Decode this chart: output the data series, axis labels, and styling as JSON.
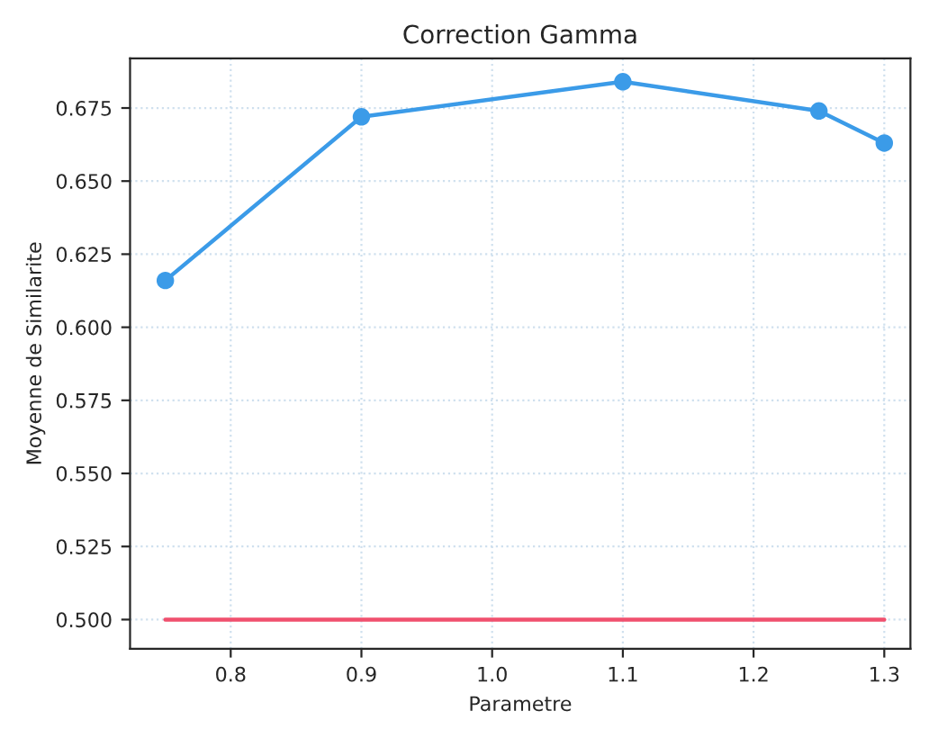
{
  "chart_data": {
    "type": "line",
    "title": "Correction Gamma",
    "xlabel": "Parametre",
    "ylabel": "Moyenne de Similarite",
    "x": [
      0.75,
      0.9,
      1.1,
      1.25,
      1.3
    ],
    "series": [
      {
        "color": "#3b9be8",
        "values": [
          0.616,
          0.672,
          0.684,
          0.674,
          0.663
        ],
        "marker": "circle"
      },
      {
        "color": "#f0506e",
        "values": [
          0.5,
          0.5,
          0.5,
          0.5,
          0.5
        ],
        "marker": "none"
      }
    ],
    "xlim": [
      0.723,
      1.32
    ],
    "ylim": [
      0.49,
      0.692
    ],
    "xticks": [
      {
        "value": 0.8,
        "label": "0.8"
      },
      {
        "value": 0.9,
        "label": "0.9"
      },
      {
        "value": 1.0,
        "label": "1.0"
      },
      {
        "value": 1.1,
        "label": "1.1"
      },
      {
        "value": 1.2,
        "label": "1.2"
      },
      {
        "value": 1.3,
        "label": "1.3"
      }
    ],
    "yticks": [
      {
        "value": 0.5,
        "label": "0.500"
      },
      {
        "value": 0.525,
        "label": "0.525"
      },
      {
        "value": 0.55,
        "label": "0.550"
      },
      {
        "value": 0.575,
        "label": "0.575"
      },
      {
        "value": 0.6,
        "label": "0.600"
      },
      {
        "value": 0.625,
        "label": "0.625"
      },
      {
        "value": 0.65,
        "label": "0.650"
      },
      {
        "value": 0.675,
        "label": "0.675"
      }
    ],
    "grid": true,
    "line_style": "solid"
  }
}
